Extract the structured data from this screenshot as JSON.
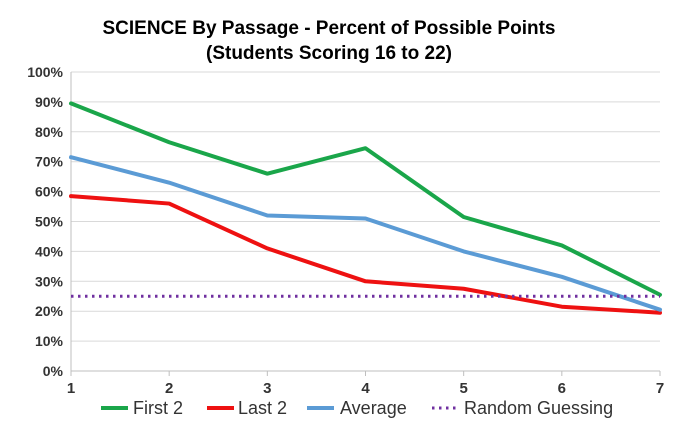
{
  "chart_data": {
    "type": "line",
    "title": "SCIENCE By Passage - Percent of Possible Points",
    "subtitle": "(Students Scoring 16 to 22)",
    "xlabel": "",
    "ylabel": "",
    "x": [
      1,
      2,
      3,
      4,
      5,
      6,
      7
    ],
    "x_tick_labels": [
      "1",
      "2",
      "3",
      "4",
      "5",
      "6",
      "7"
    ],
    "ylim": [
      0,
      100
    ],
    "y_tick_values": [
      0,
      10,
      20,
      30,
      40,
      50,
      60,
      70,
      80,
      90,
      100
    ],
    "y_tick_labels": [
      "0%",
      "10%",
      "20%",
      "30%",
      "40%",
      "50%",
      "60%",
      "70%",
      "80%",
      "90%",
      "100%"
    ],
    "grid": true,
    "legend_position": "bottom",
    "series": [
      {
        "name": "First 2",
        "color": "#1aa64a",
        "dash": "solid",
        "values": [
          89.5,
          76.5,
          66,
          74.5,
          51.5,
          42,
          25.5
        ]
      },
      {
        "name": "Last 2",
        "color": "#ee1111",
        "dash": "solid",
        "values": [
          58.5,
          56,
          41,
          30,
          27.5,
          21.5,
          19.5
        ]
      },
      {
        "name": "Average",
        "color": "#5b9bd5",
        "dash": "solid",
        "values": [
          71.5,
          63,
          52,
          51,
          40,
          31.5,
          20.5
        ]
      },
      {
        "name": "Random Guessing",
        "color": "#7030a0",
        "dash": "dotted",
        "values": [
          25,
          25,
          25,
          25,
          25,
          25,
          25
        ]
      }
    ]
  }
}
